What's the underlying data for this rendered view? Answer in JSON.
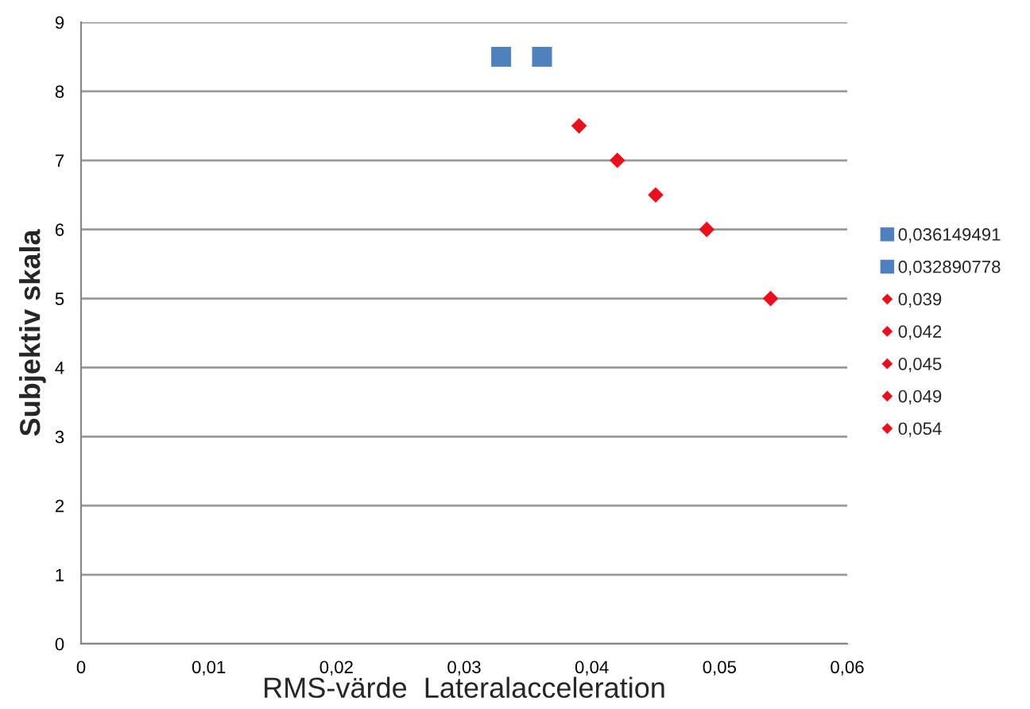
{
  "chart_data": {
    "type": "scatter",
    "xlabel": "RMS-värde  Lateralacceleration",
    "ylabel": "Subjektiv skala",
    "series": [
      {
        "name": "0,036149491",
        "color": "#4f81bd",
        "marker": "square",
        "x": [
          0.0361
        ],
        "values": [
          8.5
        ]
      },
      {
        "name": "0,032890778",
        "color": "#4f81bd",
        "marker": "square",
        "x": [
          0.0329
        ],
        "values": [
          8.5
        ]
      },
      {
        "name": "0,039",
        "color": "#e8101c",
        "marker": "diamond",
        "x": [
          0.039
        ],
        "values": [
          7.5
        ]
      },
      {
        "name": "0,042",
        "color": "#e8101c",
        "marker": "diamond",
        "x": [
          0.042
        ],
        "values": [
          7
        ]
      },
      {
        "name": "0,045",
        "color": "#e8101c",
        "marker": "diamond",
        "x": [
          0.045
        ],
        "values": [
          6.5
        ]
      },
      {
        "name": "0,049",
        "color": "#e8101c",
        "marker": "diamond",
        "x": [
          0.049
        ],
        "values": [
          6
        ]
      },
      {
        "name": "0,054",
        "color": "#e8101c",
        "marker": "diamond",
        "x": [
          0.054
        ],
        "values": [
          5
        ]
      }
    ],
    "xlim": [
      0,
      0.06
    ],
    "xticks": [
      {
        "value": 0,
        "label": "0"
      },
      {
        "value": 0.01,
        "label": "0,01"
      },
      {
        "value": 0.02,
        "label": "0,02"
      },
      {
        "value": 0.03,
        "label": "0,03"
      },
      {
        "value": 0.04,
        "label": "0,04"
      },
      {
        "value": 0.05,
        "label": "0,05"
      },
      {
        "value": 0.06,
        "label": "0,06"
      }
    ],
    "ylim": [
      0,
      9
    ],
    "yticks": [
      0,
      1,
      2,
      3,
      4,
      5,
      6,
      7,
      8,
      9
    ],
    "grid": "y",
    "legend": "right"
  }
}
